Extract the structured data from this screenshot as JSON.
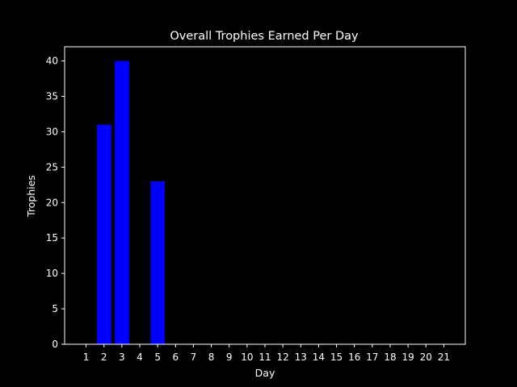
{
  "chart_data": {
    "type": "bar",
    "title": "Overall Trophies Earned Per Day",
    "xlabel": "Day",
    "ylabel": "Trophies",
    "categories": [
      "1",
      "2",
      "3",
      "4",
      "5",
      "6",
      "7",
      "8",
      "9",
      "10",
      "11",
      "12",
      "13",
      "14",
      "15",
      "16",
      "17",
      "18",
      "19",
      "20",
      "21"
    ],
    "values": [
      0,
      31,
      40,
      0,
      23,
      0,
      0,
      0,
      0,
      0,
      0,
      0,
      0,
      0,
      0,
      0,
      0,
      0,
      0,
      0,
      0
    ],
    "ylim": [
      0,
      42
    ],
    "yticks": [
      0,
      5,
      10,
      15,
      20,
      25,
      30,
      35,
      40
    ],
    "grid": false,
    "colors": {
      "background": "#000000",
      "bar": "#0000ff",
      "axes": "#ffffff",
      "text": "#ffffff"
    }
  }
}
